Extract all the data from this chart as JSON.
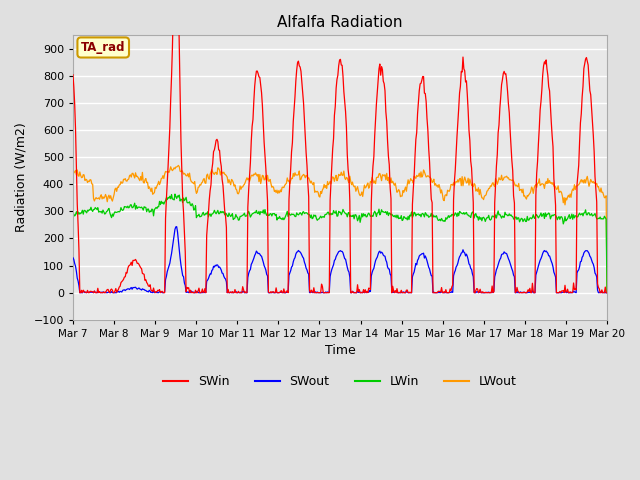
{
  "title": "Alfalfa Radiation",
  "xlabel": "Time",
  "ylabel": "Radiation (W/m2)",
  "ylim": [
    -100,
    950
  ],
  "yticks": [
    -100,
    0,
    100,
    200,
    300,
    400,
    500,
    600,
    700,
    800,
    900
  ],
  "figure_bg_color": "#e0e0e0",
  "plot_bg_color": "#e8e8e8",
  "grid_color": "#ffffff",
  "annotation_text": "TA_rad",
  "annotation_bg": "#ffffcc",
  "annotation_border": "#cc9900",
  "line_colors": {
    "SWin": "#ff0000",
    "SWout": "#0000ff",
    "LWin": "#00cc00",
    "LWout": "#ff9900"
  }
}
